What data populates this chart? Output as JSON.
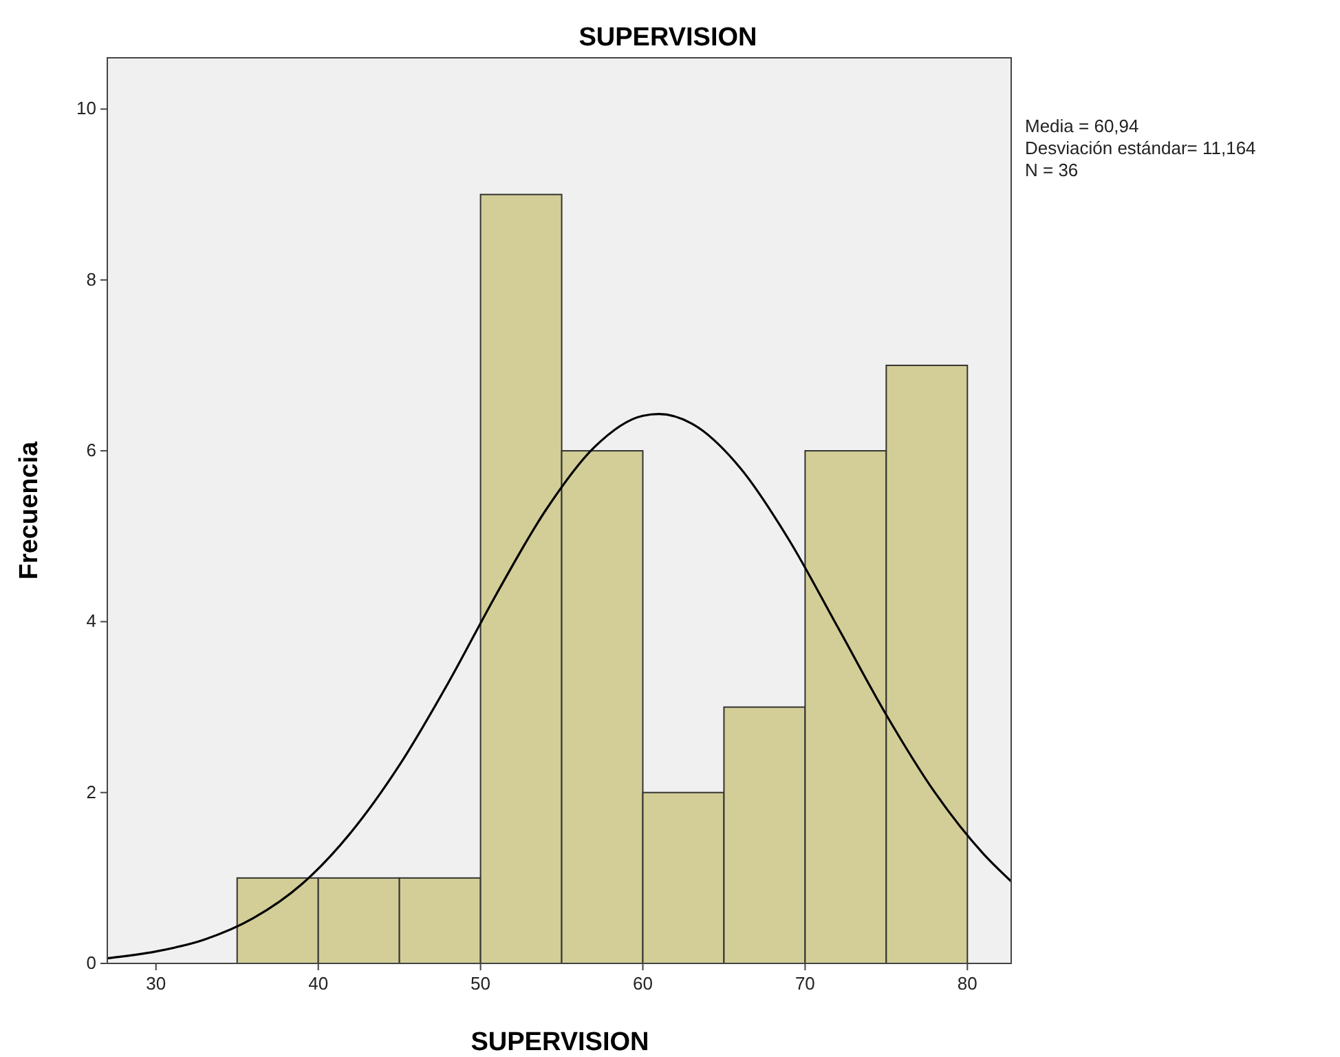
{
  "chart_data": {
    "type": "histogram",
    "title": "SUPERVISION",
    "xlabel": "SUPERVISION",
    "ylabel": "Frecuencia",
    "bins": [
      35,
      40,
      45,
      50,
      55,
      60,
      65,
      70,
      75,
      80
    ],
    "values": [
      1,
      1,
      1,
      9,
      6,
      2,
      3,
      6,
      7
    ],
    "color": "#d3ce97",
    "series": [
      {
        "type": "line",
        "color": "#000000",
        "x": [
          27,
          30,
          33,
          36,
          39,
          42,
          45,
          48,
          51,
          54,
          57,
          60,
          61,
          63,
          66,
          69,
          72,
          75,
          78,
          81,
          82.7
        ],
        "values": [
          0.06,
          0.14,
          0.28,
          0.53,
          0.93,
          1.53,
          2.32,
          3.28,
          4.33,
          5.3,
          6.04,
          6.41,
          6.43,
          6.32,
          5.8,
          4.96,
          3.94,
          2.91,
          2.0,
          1.28,
          0.96
        ]
      }
    ],
    "xlim": [
      27,
      82.7
    ],
    "xticks": [
      30,
      40,
      50,
      60,
      70,
      80
    ],
    "ylim": [
      0,
      10.6
    ],
    "yticks": [
      0,
      2,
      4,
      6,
      8,
      10
    ],
    "grid": false,
    "annotations": [
      "Media = 60,94",
      "Desviación estándar= 11,164",
      "N = 36"
    ]
  }
}
